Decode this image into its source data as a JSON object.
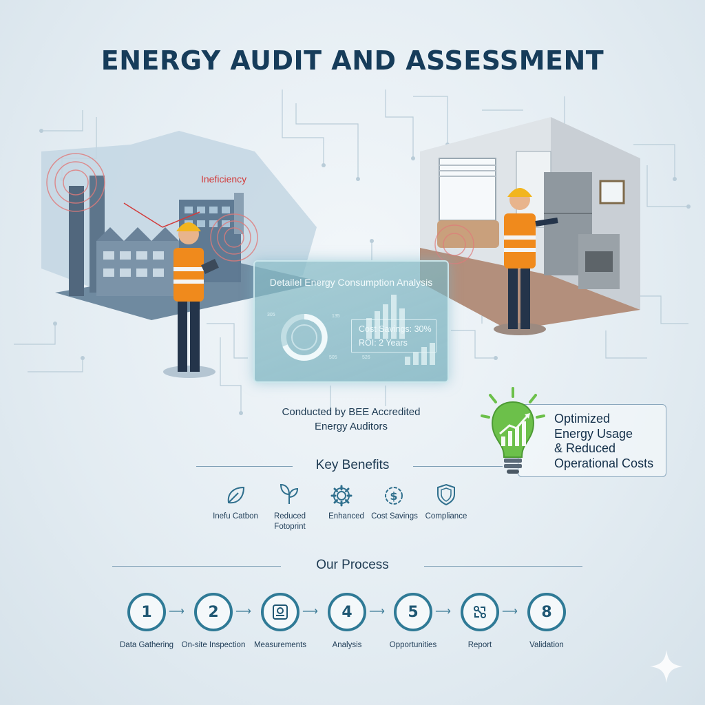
{
  "title": "ENERGY AUDIT AND ASSESSMENT",
  "factory_scene": {
    "annotation": "Ineficiency"
  },
  "analysis_panel": {
    "title": "Detailel Energy Consumption Analysis",
    "cost_savings": "Cost Savings: 30%",
    "roi": "ROI: 2 Years",
    "tick_labels": [
      "305",
      "135",
      "505",
      "526"
    ]
  },
  "auditors_note": {
    "line1": "Conducted by BEE Accredited",
    "line2": "Energy Auditors"
  },
  "optimized_callout": {
    "line1": "Optimized",
    "line2": "Energy Usage",
    "line3": "& Reduced",
    "line4": "Operational Costs"
  },
  "key_benefits": {
    "heading": "Key Benefits",
    "items": [
      {
        "icon": "leaf-icon",
        "label": "Inefu Catbon"
      },
      {
        "icon": "plant-icon",
        "label": "Reduced Fotoprint"
      },
      {
        "icon": "gear-icon",
        "label": "Enhanced"
      },
      {
        "icon": "dollar-gear-icon",
        "label": "Cost Savings"
      },
      {
        "icon": "shield-icon",
        "label": "Compliance"
      }
    ]
  },
  "process": {
    "heading": "Our Process",
    "steps": [
      {
        "badge": "1",
        "label": "Data Gathering"
      },
      {
        "badge": "2",
        "label": "On-site Inspection"
      },
      {
        "badge": "",
        "icon": "meter-icon",
        "label": "Measurements"
      },
      {
        "badge": "4",
        "label": "Analysis"
      },
      {
        "badge": "5",
        "label": "Opportunities"
      },
      {
        "badge": "",
        "icon": "report-icon",
        "label": "Report"
      },
      {
        "badge": "8",
        "label": "Validation"
      }
    ]
  },
  "colors": {
    "accent": "#2f7a96",
    "title": "#163c5a",
    "alert": "#d23b3b",
    "vest": "#f08a1c",
    "bulb": "#6cc04a"
  }
}
